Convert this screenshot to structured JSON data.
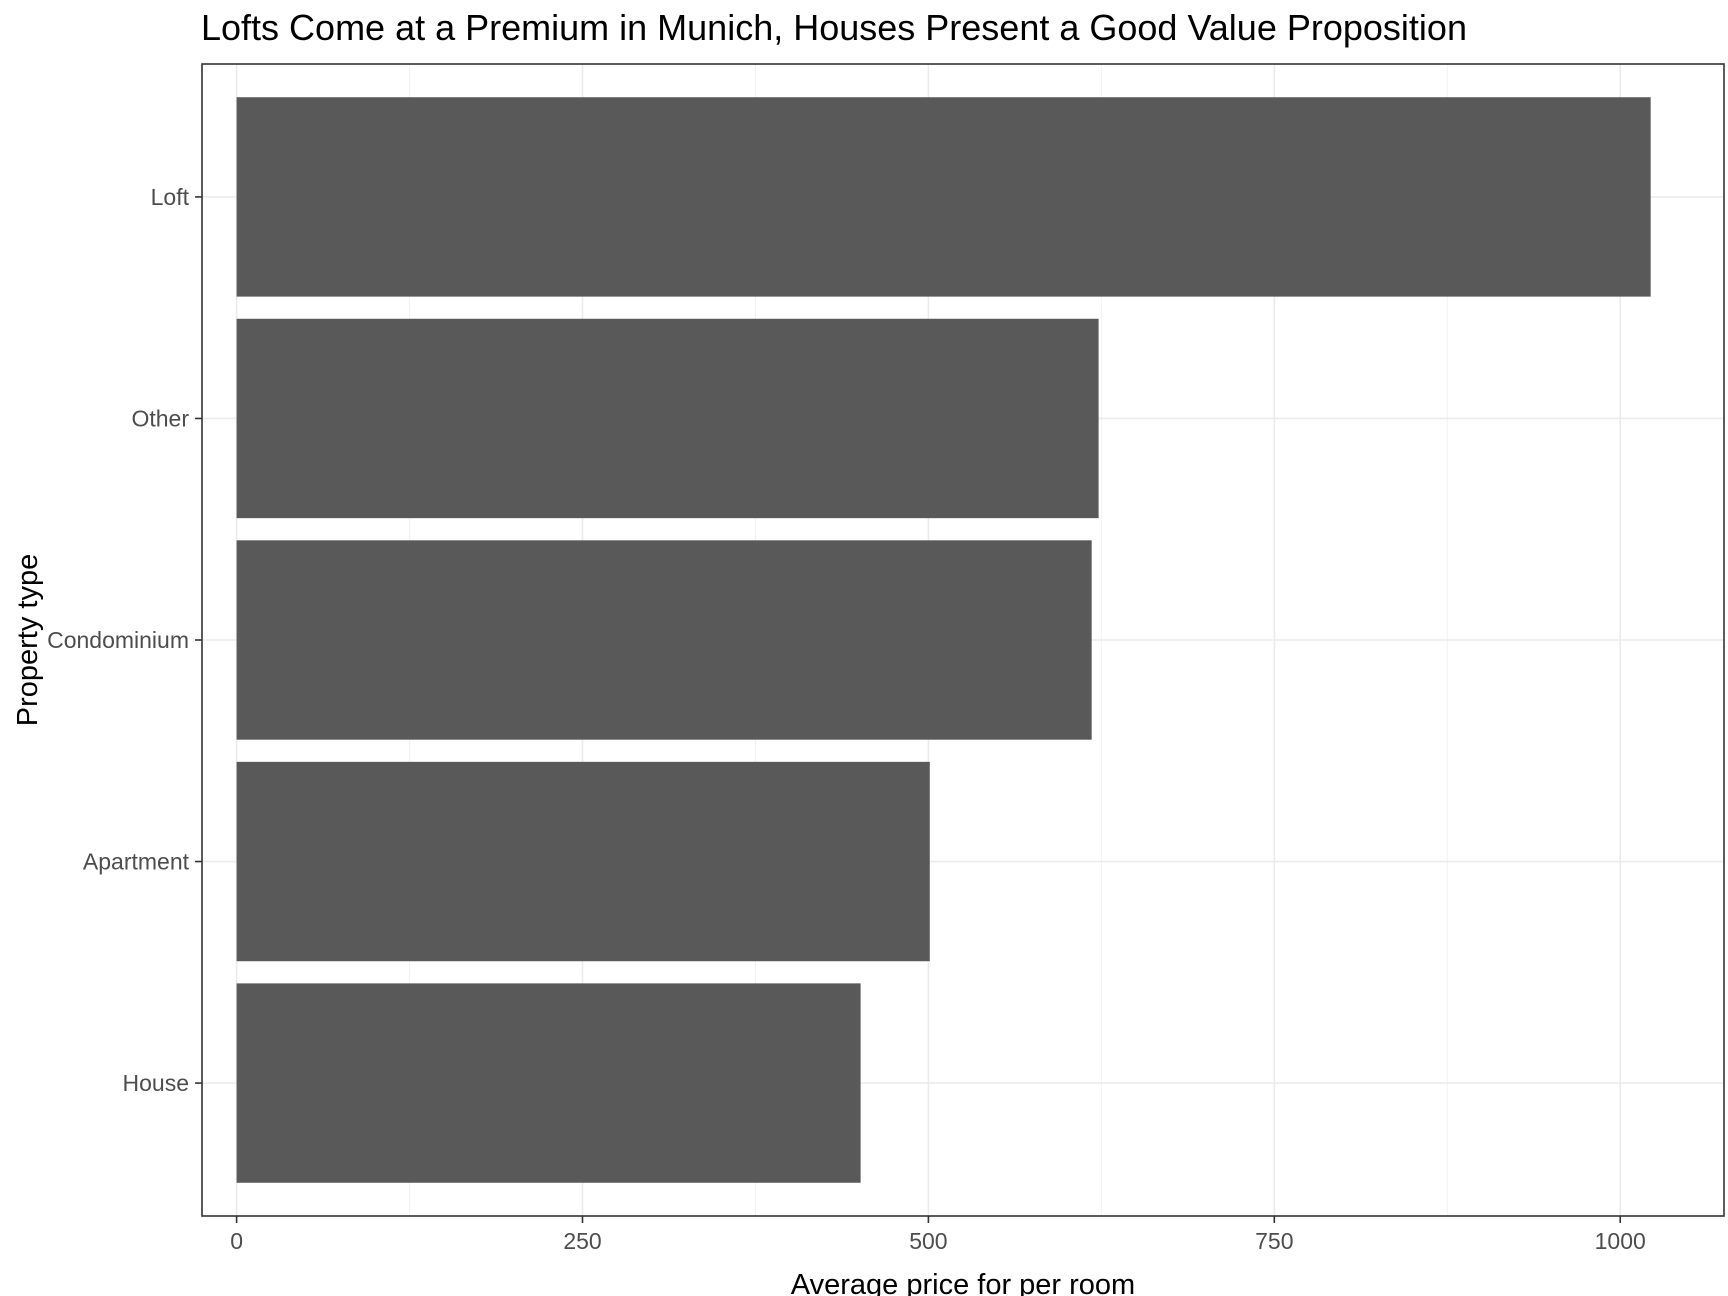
{
  "chart_data": {
    "type": "bar",
    "orientation": "horizontal",
    "title": "Lofts Come at a Premium in Munich, Houses Present a Good Value Proposition",
    "xlabel": "Average price for per room",
    "ylabel": "Property type",
    "categories": [
      "Loft",
      "Other",
      "Condominium",
      "Apartment",
      "House"
    ],
    "values": [
      1022,
      623,
      618,
      501,
      451
    ],
    "xlim": [
      -25,
      1075
    ],
    "xticks": [
      0,
      250,
      500,
      750,
      1000
    ],
    "x_minor_ticks": [
      125,
      375,
      625,
      875
    ],
    "bar_color": "#595959",
    "grid": true,
    "legend": "none"
  }
}
